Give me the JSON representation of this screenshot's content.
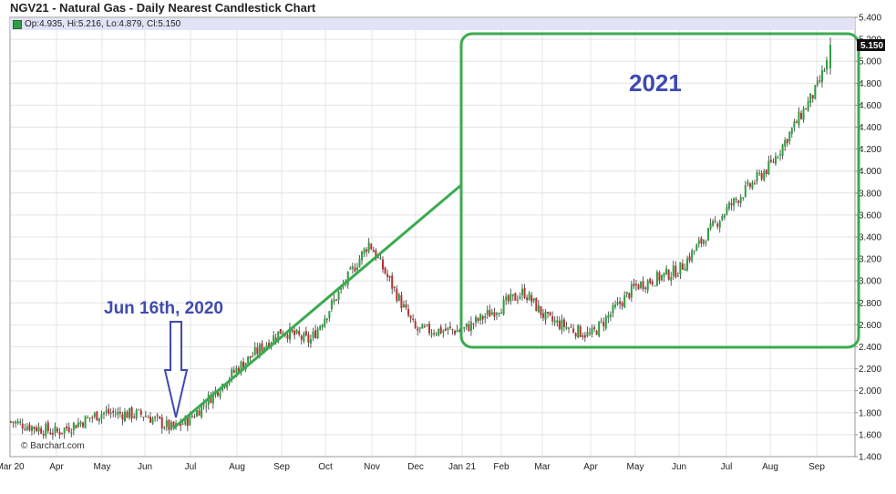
{
  "header": {
    "title": "NGV21 - Natural Gas - Daily Nearest Candlestick Chart",
    "ohlc": "Op:4.935, Hi:5.216, Lo:4.879, Cl:5.150"
  },
  "colors": {
    "up": "#2e9e3e",
    "down": "#b43232",
    "annotation_green": "#3caa50",
    "annotation_text": "#3f4ab0",
    "last_label_bg": "#111111"
  },
  "chart_data": {
    "type": "candlestick",
    "title": "NGV21 - Natural Gas - Daily Nearest Candlestick Chart",
    "ylim": [
      1.4,
      5.4
    ],
    "y_ticks": [
      "5.400",
      "5.200",
      "5.000",
      "4.800",
      "4.600",
      "4.400",
      "4.200",
      "4.000",
      "3.800",
      "3.600",
      "3.400",
      "3.200",
      "3.000",
      "2.800",
      "2.600",
      "2.400",
      "2.200",
      "2.000",
      "1.800",
      "1.600",
      "1.400"
    ],
    "x_ticks": [
      "Mar 20",
      "Apr",
      "May",
      "Jun",
      "Jul",
      "Aug",
      "Sep",
      "Oct",
      "Nov",
      "Dec",
      "Jan 21",
      "Feb",
      "Mar",
      "Apr",
      "May",
      "Jun",
      "Jul",
      "Aug",
      "Sep"
    ],
    "last_value": "5.150",
    "last_bar": {
      "open": 4.935,
      "high": 5.216,
      "low": 4.879,
      "close": 5.15
    },
    "price_path": [
      [
        "Mar 20",
        1.72
      ],
      [
        "Apr",
        1.62
      ],
      [
        "May",
        1.8
      ],
      [
        "Jun",
        1.78
      ],
      [
        "Jun 16th, 2020",
        1.65
      ],
      [
        "Jul",
        1.75
      ],
      [
        "Aug",
        2.2
      ],
      [
        "Sep",
        2.55
      ],
      [
        "Oct",
        2.45
      ],
      [
        "Nov",
        3.35
      ],
      [
        "Dec",
        2.55
      ],
      [
        "Jan 21",
        2.55
      ],
      [
        "Feb",
        2.9
      ],
      [
        "Mar",
        2.65
      ],
      [
        "Apr",
        2.5
      ],
      [
        "May",
        2.95
      ],
      [
        "Jun",
        3.1
      ],
      [
        "Jul",
        3.65
      ],
      [
        "Aug",
        4.05
      ],
      [
        "Sep",
        4.75
      ]
    ],
    "grid": true,
    "annotations": {
      "year_label": "2021",
      "date_label": "Jun 16th, 2020"
    },
    "copyright": "© Barchart.com"
  }
}
